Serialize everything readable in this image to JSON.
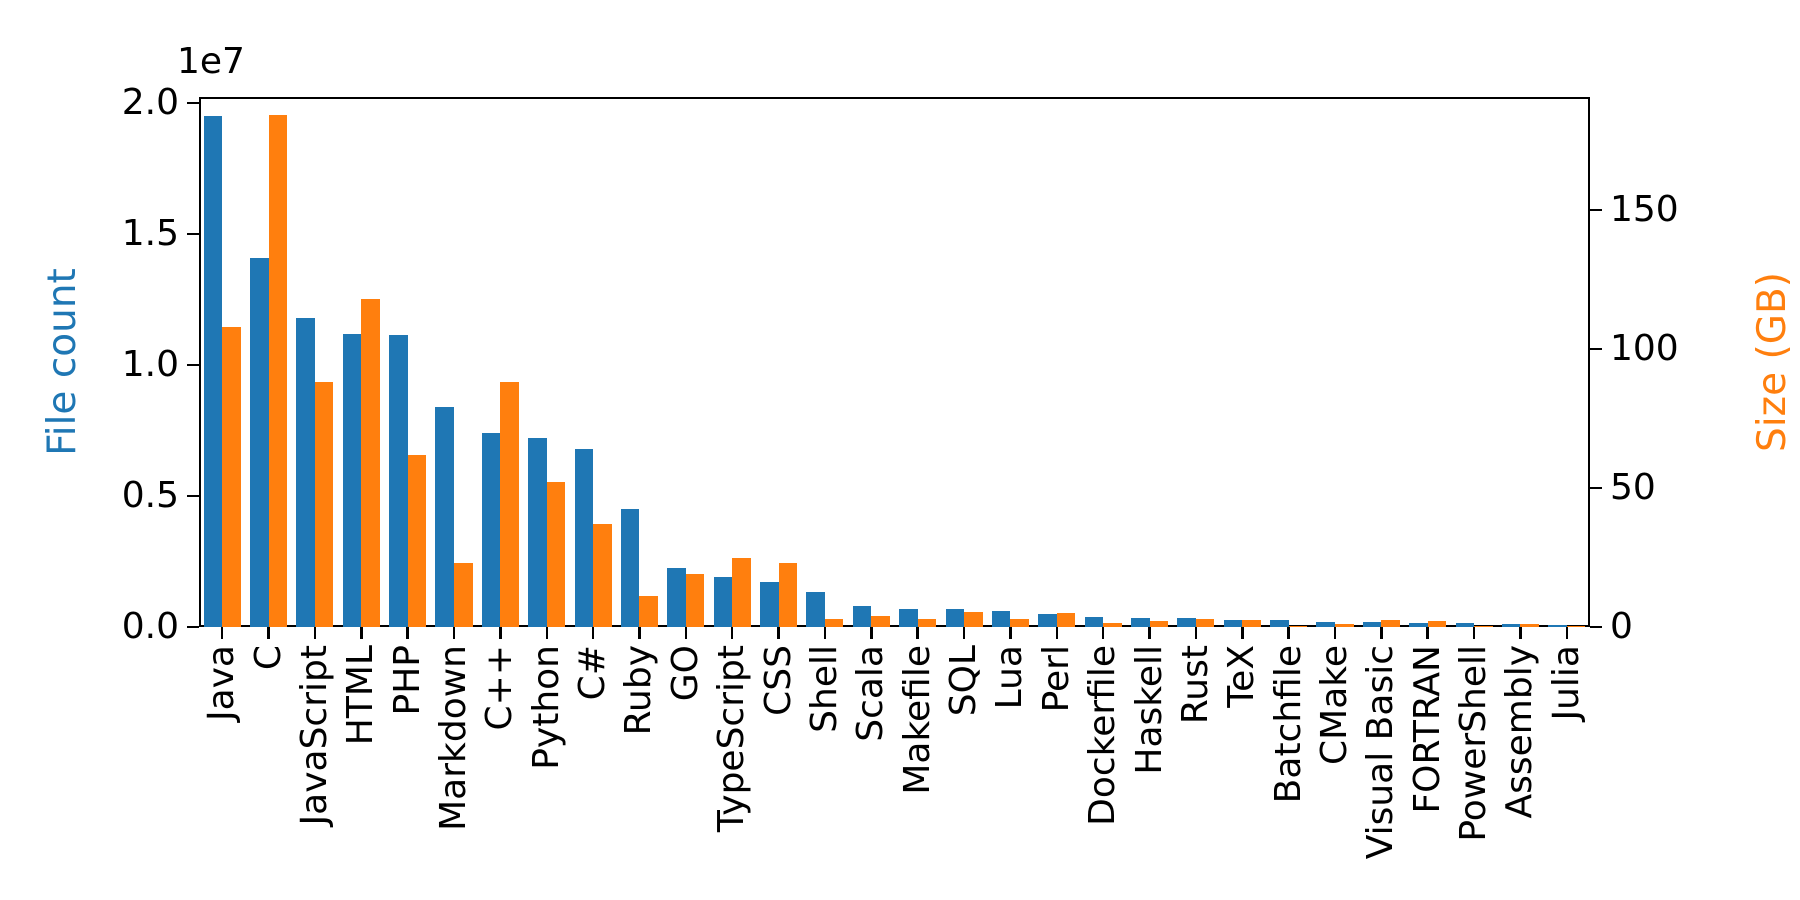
{
  "chart_data": {
    "type": "bar",
    "title": "",
    "categories": [
      "Java",
      "C",
      "JavaScript",
      "HTML",
      "PHP",
      "Markdown",
      "C++",
      "Python",
      "C#",
      "Ruby",
      "GO",
      "TypeScript",
      "CSS",
      "Shell",
      "Scala",
      "Makefile",
      "SQL",
      "Lua",
      "Perl",
      "Dockerfile",
      "Haskell",
      "Rust",
      "TeX",
      "Batchfile",
      "CMake",
      "Visual Basic",
      "FORTRAN",
      "PowerShell",
      "Assembly",
      "Julia"
    ],
    "series": [
      {
        "name": "File count",
        "axis": "left",
        "color": "#1f77b4",
        "values": [
          19500000,
          14100000,
          11800000,
          11200000,
          11150000,
          8400000,
          7400000,
          7200000,
          6800000,
          4500000,
          2250000,
          1900000,
          1700000,
          1350000,
          800000,
          700000,
          700000,
          600000,
          500000,
          380000,
          340000,
          330000,
          280000,
          260000,
          190000,
          180000,
          170000,
          160000,
          120000,
          70000
        ]
      },
      {
        "name": "Size (GB)",
        "axis": "right",
        "color": "#ff7f0e",
        "values": [
          108,
          184,
          88,
          118,
          62,
          23,
          88,
          52,
          37,
          11,
          19,
          25,
          23,
          3,
          4,
          3,
          5.5,
          3,
          5,
          1.5,
          2,
          3,
          2.5,
          0.5,
          1,
          2.5,
          2,
          0.5,
          1,
          0.5
        ]
      }
    ],
    "left_axis": {
      "label": "File count",
      "color": "#1f77b4",
      "tick_labels": [
        "0.0",
        "0.5",
        "1.0",
        "1.5",
        "2.0"
      ],
      "tick_values": [
        0,
        5000000,
        10000000,
        15000000,
        20000000
      ],
      "offset_text": "1e7",
      "range": [
        0,
        20200000
      ]
    },
    "right_axis": {
      "label": "Size (GB)",
      "color": "#ff7f0e",
      "tick_labels": [
        "0",
        "50",
        "100",
        "150"
      ],
      "tick_values": [
        0,
        50,
        100,
        150
      ],
      "range": [
        0,
        190
      ]
    },
    "xlabel": "",
    "grid": false,
    "legend": "none"
  }
}
